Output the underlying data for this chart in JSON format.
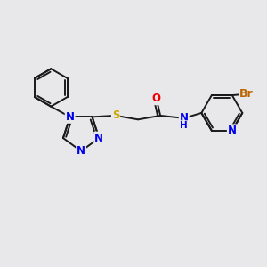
{
  "bg_color": "#e8e8ea",
  "bond_color": "#1a1a1a",
  "bond_width": 1.4,
  "atom_colors": {
    "N": "#0000ee",
    "S": "#ccaa00",
    "O": "#ee0000",
    "Br": "#bb6600",
    "C": "#1a1a1a"
  },
  "font_size": 8.5,
  "fig_size": [
    3.0,
    3.0
  ],
  "dpi": 100
}
